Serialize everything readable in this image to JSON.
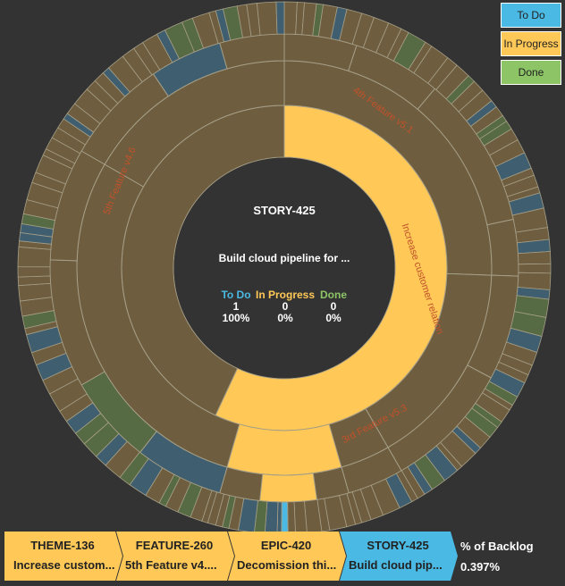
{
  "colors": {
    "todo": "#4ab9e4",
    "in_progress": "#ffc857",
    "done": "#8cc466",
    "seg_brown": "#6e5d3f",
    "seg_blue": "#3f5f70",
    "seg_green": "#566a43",
    "stroke": "#a59e86",
    "background": "#333333",
    "arc_label": "#c2522a"
  },
  "legend": [
    {
      "label": "To Do",
      "color": "#4ab9e4"
    },
    {
      "label": "In Progress",
      "color": "#ffc857"
    },
    {
      "label": "Done",
      "color": "#8cc466"
    }
  ],
  "center": {
    "title": "STORY-425",
    "name": "Build cloud pipeline for ...",
    "stats": [
      {
        "label": "To Do",
        "count": "1",
        "percent": "100%",
        "color": "#4ab9e4"
      },
      {
        "label": "In Progress",
        "count": "0",
        "percent": "0%",
        "color": "#ffc857"
      },
      {
        "label": "Done",
        "count": "0",
        "percent": "0%",
        "color": "#8cc466"
      }
    ]
  },
  "breadcrumb": [
    {
      "id": "THEME-136",
      "name": "Increase custom...",
      "color": "#ffc857"
    },
    {
      "id": "FEATURE-260",
      "name": "5th Feature v4....",
      "color": "#ffc857"
    },
    {
      "id": "EPIC-420",
      "name": "Decomission thi...",
      "color": "#ffc857"
    },
    {
      "id": "STORY-425",
      "name": "Build cloud pip...",
      "color": "#4ab9e4"
    }
  ],
  "backlog": {
    "label": "% of Backlog",
    "value": "0.397%"
  },
  "chart_data": {
    "type": "sunburst",
    "levels": [
      "Theme",
      "Feature",
      "Epic",
      "Story"
    ],
    "selected_path": [
      "THEME-136",
      "FEATURE-260",
      "EPIC-420",
      "STORY-425"
    ],
    "selected_story_share_of_backlog_percent": 0.397,
    "arc_labels": [
      {
        "text": "Increase customer relation",
        "level": "Theme"
      },
      {
        "text": "4th Feature v5.1",
        "level": "Feature"
      },
      {
        "text": "5th Feature v4.6",
        "level": "Feature"
      },
      {
        "text": "3rd Feature v5.3",
        "level": "Feature"
      }
    ],
    "themes": [
      {
        "label": "Increase customer relation",
        "start_deg": 0,
        "end_deg": 205,
        "state": "In Progress"
      },
      {
        "label": "",
        "start_deg": 205,
        "end_deg": 360,
        "state": "In Progress"
      }
    ],
    "features": [
      {
        "label": "4th Feature v5.1",
        "start_deg": 0,
        "end_deg": 92,
        "state": "In Progress"
      },
      {
        "label": "3rd Feature v5.3",
        "start_deg": 92,
        "end_deg": 150,
        "state": "In Progress"
      },
      {
        "label": "5th Feature v4.6",
        "start_deg": 150,
        "end_deg": 196,
        "state": "In Progress"
      },
      {
        "label": "",
        "start_deg": 196,
        "end_deg": 300,
        "state": "In Progress"
      },
      {
        "label": "",
        "start_deg": 300,
        "end_deg": 360,
        "state": "In Progress"
      }
    ],
    "epics": [
      {
        "start_deg": 0,
        "end_deg": 18,
        "state": "In Progress"
      },
      {
        "start_deg": 18,
        "end_deg": 40,
        "state": "In Progress"
      },
      {
        "start_deg": 40,
        "end_deg": 78,
        "state": "In Progress"
      },
      {
        "start_deg": 78,
        "end_deg": 92,
        "state": "In Progress"
      },
      {
        "start_deg": 92,
        "end_deg": 118,
        "state": "In Progress"
      },
      {
        "start_deg": 118,
        "end_deg": 150,
        "state": "In Progress"
      },
      {
        "start_deg": 150,
        "end_deg": 164,
        "state": "In Progress"
      },
      {
        "start_deg": 164,
        "end_deg": 180,
        "state": "In Progress"
      },
      {
        "start_deg": 180,
        "end_deg": 196,
        "state": "In Progress"
      },
      {
        "start_deg": 196,
        "end_deg": 218,
        "state": "To Do"
      },
      {
        "start_deg": 218,
        "end_deg": 240,
        "state": "Done"
      },
      {
        "start_deg": 240,
        "end_deg": 272,
        "state": "In Progress"
      },
      {
        "start_deg": 272,
        "end_deg": 300,
        "state": "In Progress"
      },
      {
        "start_deg": 300,
        "end_deg": 326,
        "state": "In Progress"
      },
      {
        "start_deg": 326,
        "end_deg": 344,
        "state": "To Do"
      },
      {
        "start_deg": 344,
        "end_deg": 360,
        "state": "In Progress"
      }
    ],
    "selected_story": {
      "start_deg": 179.2,
      "end_deg": 180.6,
      "state": "To Do"
    }
  }
}
